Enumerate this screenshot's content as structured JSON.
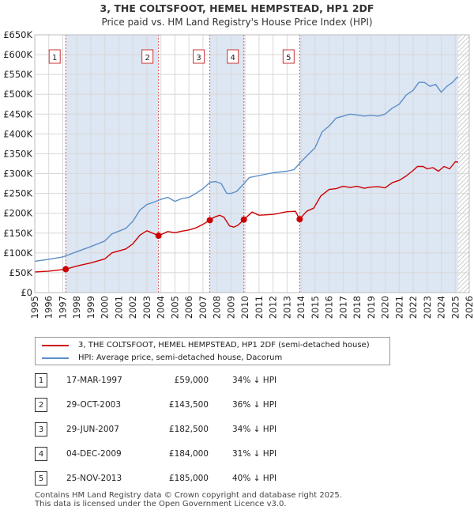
{
  "header": {
    "title": "3, THE COLTSFOOT, HEMEL HEMPSTEAD, HP1 2DF",
    "subtitle": "Price paid vs. HM Land Registry's House Price Index (HPI)"
  },
  "colors": {
    "price_line": "#cc0000",
    "hpi_line": "#5b8fc9",
    "shade": "#dde6f3",
    "grid": "#d8d8d8",
    "marker_line": "#dd5555"
  },
  "chart_data": {
    "type": "line",
    "title": "3, THE COLTSFOOT, HEMEL HEMPSTEAD, HP1 2DF",
    "subtitle": "Price paid vs. HM Land Registry's House Price Index (HPI)",
    "xlim": [
      1995,
      2026
    ],
    "ylim": [
      0,
      650000
    ],
    "x_ticks": [
      "1995",
      "1996",
      "1997",
      "1998",
      "1999",
      "2000",
      "2001",
      "2002",
      "2003",
      "2004",
      "2005",
      "2006",
      "2007",
      "2008",
      "2009",
      "2010",
      "2011",
      "2012",
      "2013",
      "2014",
      "2015",
      "2016",
      "2017",
      "2018",
      "2019",
      "2020",
      "2021",
      "2022",
      "2023",
      "2024",
      "2025",
      "2026"
    ],
    "y_ticks": [
      {
        "value": 0,
        "label": "£0"
      },
      {
        "value": 50000,
        "label": "£50K"
      },
      {
        "value": 100000,
        "label": "£100K"
      },
      {
        "value": 150000,
        "label": "£150K"
      },
      {
        "value": 200000,
        "label": "£200K"
      },
      {
        "value": 250000,
        "label": "£250K"
      },
      {
        "value": 300000,
        "label": "£300K"
      },
      {
        "value": 350000,
        "label": "£350K"
      },
      {
        "value": 400000,
        "label": "£400K"
      },
      {
        "value": 450000,
        "label": "£450K"
      },
      {
        "value": 500000,
        "label": "£500K"
      },
      {
        "value": 550000,
        "label": "£550K"
      },
      {
        "value": 600000,
        "label": "£600K"
      },
      {
        "value": 650000,
        "label": "£650K"
      }
    ],
    "shaded_ranges": [
      [
        1997.21,
        2003.83
      ],
      [
        2007.49,
        2009.92
      ],
      [
        2013.9,
        2025.2
      ]
    ],
    "hatched_from": 2025.2,
    "series": [
      {
        "name": "3, THE COLTSFOOT, HEMEL HEMPSTEAD, HP1 2DF (semi-detached house)",
        "x": [
          1995.0,
          1996.0,
          1997.21,
          1998.0,
          1999.0,
          2000.0,
          2000.5,
          2001.0,
          2001.5,
          2002.0,
          2002.5,
          2003.0,
          2003.83,
          2004.5,
          2005.0,
          2005.5,
          2006.0,
          2006.5,
          2007.0,
          2007.49,
          2007.8,
          2008.2,
          2008.5,
          2008.9,
          2009.2,
          2009.5,
          2009.92,
          2010.5,
          2011.0,
          2012.0,
          2013.0,
          2013.6,
          2013.9,
          2014.4,
          2014.9,
          2015.4,
          2016.0,
          2016.5,
          2017.0,
          2017.5,
          2018.0,
          2018.5,
          2019.0,
          2019.5,
          2020.0,
          2020.5,
          2021.0,
          2021.5,
          2022.0,
          2022.3,
          2022.7,
          2023.0,
          2023.4,
          2023.8,
          2024.2,
          2024.6,
          2025.0,
          2025.2
        ],
        "values": [
          52000,
          54000,
          59000,
          67000,
          75000,
          85000,
          100000,
          105000,
          110000,
          123000,
          145000,
          156000,
          143500,
          154000,
          151000,
          155000,
          158000,
          163000,
          172000,
          182500,
          190000,
          195000,
          190000,
          168000,
          165000,
          170000,
          184000,
          203000,
          195000,
          197000,
          204000,
          205000,
          185000,
          205000,
          213000,
          243000,
          260000,
          262000,
          268000,
          265000,
          268000,
          263000,
          266000,
          267000,
          264000,
          277000,
          283000,
          294000,
          308000,
          318000,
          318000,
          312000,
          315000,
          306000,
          318000,
          312000,
          330000,
          329000
        ]
      },
      {
        "name": "HPI: Average price, semi-detached house, Dacorum",
        "x": [
          1995.0,
          1996.0,
          1997.0,
          1998.0,
          1999.0,
          2000.0,
          2000.5,
          2001.0,
          2001.5,
          2002.0,
          2002.5,
          2003.0,
          2003.5,
          2004.0,
          2004.5,
          2005.0,
          2005.5,
          2006.0,
          2006.5,
          2007.0,
          2007.5,
          2007.9,
          2008.3,
          2008.7,
          2009.0,
          2009.4,
          2009.8,
          2010.3,
          2011.0,
          2012.0,
          2013.0,
          2013.5,
          2014.0,
          2014.5,
          2015.0,
          2015.5,
          2016.0,
          2016.5,
          2017.0,
          2017.5,
          2018.0,
          2018.5,
          2019.0,
          2019.5,
          2020.0,
          2020.5,
          2021.0,
          2021.5,
          2022.0,
          2022.4,
          2022.8,
          2023.2,
          2023.6,
          2024.0,
          2024.4,
          2024.8,
          2025.2
        ],
        "values": [
          79000,
          84000,
          90000,
          103000,
          116000,
          130000,
          148000,
          155000,
          162000,
          180000,
          208000,
          222000,
          228000,
          235000,
          240000,
          230000,
          237000,
          240000,
          250000,
          262000,
          278000,
          280000,
          275000,
          250000,
          250000,
          255000,
          270000,
          290000,
          295000,
          302000,
          306000,
          310000,
          330000,
          348000,
          365000,
          405000,
          420000,
          440000,
          445000,
          450000,
          448000,
          445000,
          447000,
          445000,
          450000,
          465000,
          475000,
          498000,
          510000,
          530000,
          530000,
          520000,
          525000,
          505000,
          520000,
          530000,
          545000
        ]
      }
    ],
    "sales": [
      {
        "label": "1",
        "x": 1997.21,
        "value": 59000
      },
      {
        "label": "2",
        "x": 2003.83,
        "value": 143500
      },
      {
        "label": "3",
        "x": 2007.49,
        "value": 182500
      },
      {
        "label": "4",
        "x": 2009.92,
        "value": 184000
      },
      {
        "label": "5",
        "x": 2013.9,
        "value": 185000
      }
    ]
  },
  "legend": {
    "items": [
      {
        "label": "3, THE COLTSFOOT, HEMEL HEMPSTEAD, HP1 2DF (semi-detached house)",
        "color": "#cc0000"
      },
      {
        "label": "HPI: Average price, semi-detached house, Dacorum",
        "color": "#5b8fc9"
      }
    ]
  },
  "sales_table": [
    {
      "num": "1",
      "date": "17-MAR-1997",
      "price": "£59,000",
      "hpi": "34% ↓ HPI"
    },
    {
      "num": "2",
      "date": "29-OCT-2003",
      "price": "£143,500",
      "hpi": "36% ↓ HPI"
    },
    {
      "num": "3",
      "date": "29-JUN-2007",
      "price": "£182,500",
      "hpi": "34% ↓ HPI"
    },
    {
      "num": "4",
      "date": "04-DEC-2009",
      "price": "£184,000",
      "hpi": "31% ↓ HPI"
    },
    {
      "num": "5",
      "date": "25-NOV-2013",
      "price": "£185,000",
      "hpi": "40% ↓ HPI"
    }
  ],
  "footer": {
    "line1": "Contains HM Land Registry data © Crown copyright and database right 2025.",
    "line2": "This data is licensed under the Open Government Licence v3.0."
  }
}
